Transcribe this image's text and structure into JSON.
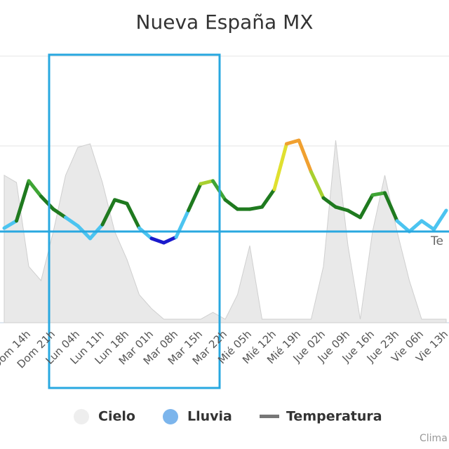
{
  "chart_data": {
    "type": "line",
    "title": "Nueva España MX",
    "categories": [
      null,
      null,
      "Dom 14h",
      null,
      "Dom 21h",
      null,
      "Lun 04h",
      null,
      "Lun 11h",
      null,
      "Lun 18h",
      null,
      "Mar 01h",
      null,
      "Mar 08h",
      null,
      "Mar 15h",
      null,
      "Mar 22h",
      null,
      "Mié 05h",
      null,
      "Mié 12h",
      null,
      "Mié 19h",
      null,
      "Jue 02h",
      null,
      "Jue 09h",
      null,
      "Jue 16h",
      null,
      "Jue 23h",
      null,
      "Vie 06h",
      null,
      "Vie 13h"
    ],
    "ylim": [
      0,
      100
    ],
    "series": [
      {
        "name": "Cielo",
        "color": "#d8d8d8",
        "kind": "area",
        "values": [
          55.3,
          52.6,
          21.1,
          15.8,
          34.2,
          55.3,
          65.8,
          67.1,
          52.6,
          34.2,
          23.7,
          10.5,
          5.3,
          1.3,
          1.3,
          1.3,
          1.3,
          3.9,
          1.3,
          10.5,
          28.9,
          1.3,
          1.3,
          1.3,
          1.3,
          1.3,
          21.1,
          68.4,
          28.9,
          1.3,
          34.2,
          55.3,
          34.2,
          15.8,
          1.3,
          1.3,
          1.3
        ]
      },
      {
        "name": "Lluvia",
        "color": "#7cb5ec",
        "kind": "column",
        "values": [
          0,
          0,
          0,
          0,
          0,
          0,
          0,
          0,
          0,
          0,
          0,
          0,
          0,
          0,
          0,
          0,
          0,
          0,
          0,
          0,
          0,
          0,
          0,
          0,
          0,
          0,
          0,
          0,
          0,
          0,
          0,
          0,
          0,
          0,
          0,
          0,
          0
        ]
      },
      {
        "name": "Temperatura",
        "color": "#777777",
        "kind": "line",
        "values": [
          35.5,
          38.2,
          53.2,
          47.4,
          42.6,
          39.5,
          36.3,
          31.6,
          36.8,
          46.1,
          44.7,
          35.5,
          31.6,
          30.0,
          32.1,
          42.1,
          52.1,
          53.2,
          46.1,
          42.6,
          42.6,
          43.4,
          50.0,
          67.1,
          68.4,
          56.6,
          46.8,
          43.4,
          42.1,
          39.5,
          47.9,
          48.7,
          38.2,
          34.2,
          38.2,
          35.0,
          42.1
        ]
      }
    ],
    "color_stops": [
      {
        "value": 33,
        "color": "#1a1acc"
      },
      {
        "value": 40,
        "color": "#4cc4f0"
      },
      {
        "value": 48,
        "color": "#1f7a1f"
      },
      {
        "value": 51,
        "color": "#3fa535"
      },
      {
        "value": 56,
        "color": "#a8d030"
      },
      {
        "value": 62,
        "color": "#e0e030"
      },
      {
        "value": 100,
        "color": "#f0a030"
      }
    ],
    "plot_line": {
      "value": 34.2,
      "label": "Te",
      "color": "#29a8e0"
    },
    "credits": "Clima"
  }
}
